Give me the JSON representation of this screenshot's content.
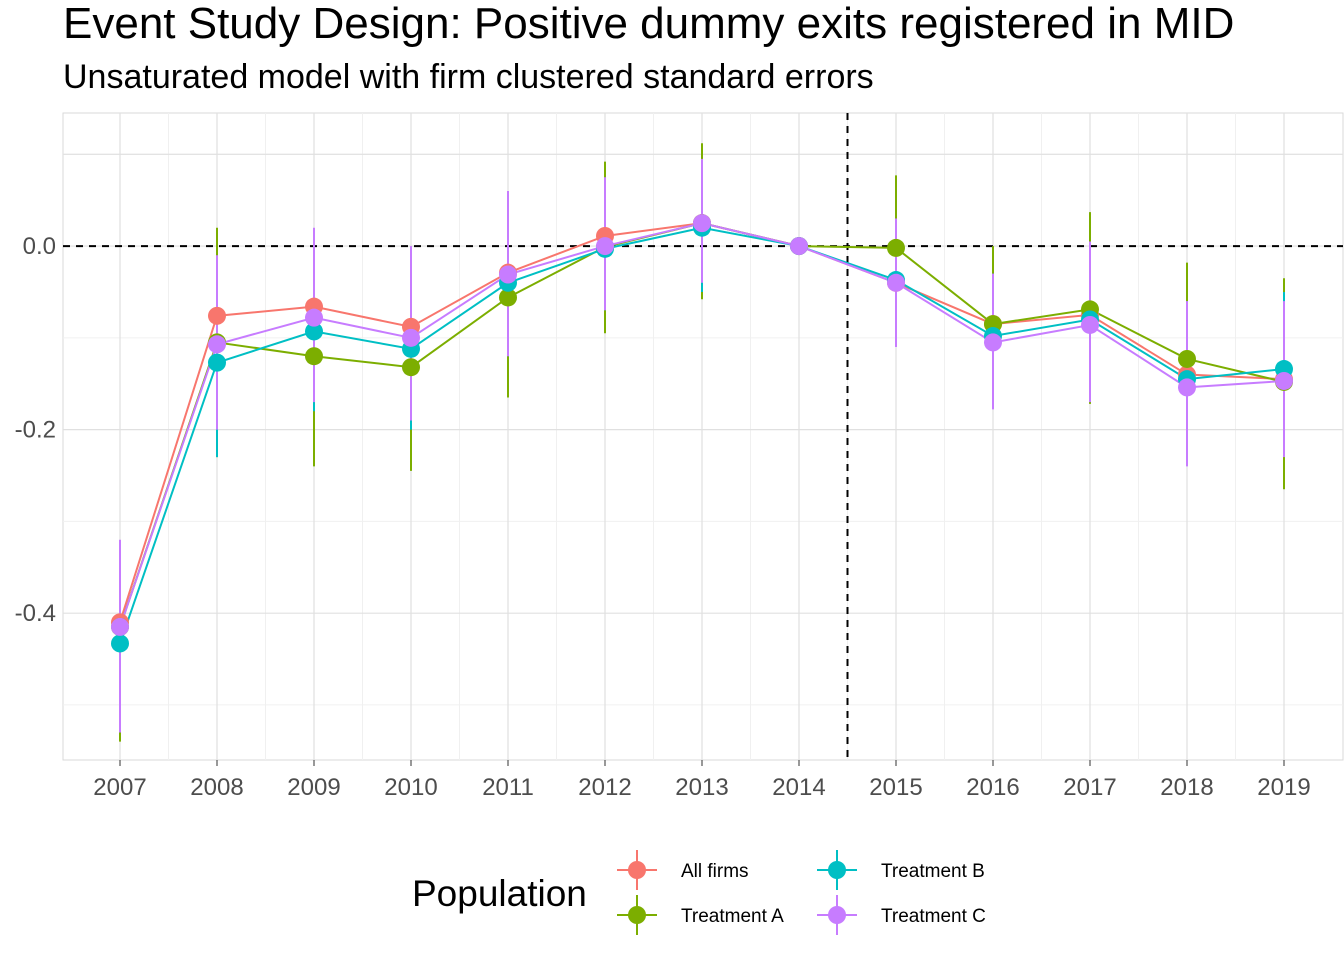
{
  "title": "Event Study Design: Positive dummy exits registered in MID",
  "subtitle": "Unsaturated model with firm clustered standard errors",
  "chart_data": {
    "type": "line",
    "title": "Event Study Design: Positive dummy exits registered in MID",
    "subtitle": "Unsaturated model with firm clustered standard errors",
    "xlabel": "",
    "ylabel": "",
    "x": [
      "2007",
      "2008",
      "2009",
      "2010",
      "2011",
      "2012",
      "2013",
      "2014",
      "2015",
      "2016",
      "2017",
      "2018",
      "2019"
    ],
    "ylim": [
      -0.56,
      0.145
    ],
    "y_ticks": [
      -0.4,
      -0.2,
      0.0
    ],
    "y_tick_labels": [
      "-0.4",
      "-0.2",
      "0.0"
    ],
    "reference_lines": {
      "hline_y": 0.0,
      "vline_between": [
        "2014",
        "2015"
      ],
      "style": "dashed"
    },
    "grid": true,
    "legend": {
      "title": "Population",
      "position": "bottom"
    },
    "series": [
      {
        "name": "All firms",
        "color": "#F8766D",
        "values": [
          -0.41,
          -0.076,
          -0.066,
          -0.088,
          -0.029,
          0.011,
          0.025,
          0.0,
          -0.04,
          -0.085,
          -0.075,
          -0.14,
          -0.145
        ],
        "ci_low": [
          -0.49,
          -0.14,
          -0.14,
          -0.17,
          -0.11,
          -0.06,
          -0.04,
          0.0,
          -0.1,
          -0.16,
          -0.16,
          -0.22,
          -0.24
        ],
        "ci_high": [
          -0.33,
          -0.01,
          0.01,
          -0.005,
          0.05,
          0.08,
          0.09,
          0.0,
          0.02,
          -0.01,
          0.01,
          -0.06,
          -0.05
        ]
      },
      {
        "name": "Treatment A",
        "color": "#7CAE00",
        "values": [
          -0.415,
          -0.105,
          -0.12,
          -0.132,
          -0.056,
          -0.001,
          0.025,
          0.0,
          -0.002,
          -0.085,
          -0.069,
          -0.123,
          -0.148
        ],
        "ci_low": [
          -0.54,
          -0.23,
          -0.24,
          -0.245,
          -0.165,
          -0.095,
          -0.058,
          0.0,
          -0.08,
          -0.17,
          -0.172,
          -0.22,
          -0.265
        ],
        "ci_high": [
          -0.325,
          0.02,
          0.0,
          -0.02,
          0.05,
          0.092,
          0.112,
          0.0,
          0.077,
          0.0,
          0.037,
          -0.018,
          -0.035
        ]
      },
      {
        "name": "Treatment B",
        "color": "#00BFC4",
        "values": [
          -0.433,
          -0.127,
          -0.093,
          -0.112,
          -0.04,
          -0.003,
          0.02,
          0.0,
          -0.037,
          -0.098,
          -0.08,
          -0.145,
          -0.134
        ],
        "ci_low": [
          -0.53,
          -0.23,
          -0.18,
          -0.2,
          -0.12,
          -0.07,
          -0.05,
          0.0,
          -0.1,
          -0.17,
          -0.16,
          -0.22,
          -0.21
        ],
        "ci_high": [
          -0.35,
          -0.02,
          0.0,
          -0.02,
          0.04,
          0.07,
          0.09,
          0.0,
          0.03,
          -0.03,
          0.0,
          -0.06,
          -0.05
        ]
      },
      {
        "name": "Treatment C",
        "color": "#C77CFF",
        "values": [
          -0.415,
          -0.107,
          -0.078,
          -0.1,
          -0.031,
          0.0,
          0.025,
          0.0,
          -0.04,
          -0.105,
          -0.086,
          -0.154,
          -0.147
        ],
        "ci_low": [
          -0.53,
          -0.2,
          -0.17,
          -0.19,
          -0.12,
          -0.07,
          -0.04,
          0.0,
          -0.11,
          -0.178,
          -0.17,
          -0.24,
          -0.23
        ],
        "ci_high": [
          -0.32,
          -0.01,
          0.02,
          0.0,
          0.06,
          0.075,
          0.095,
          0.0,
          0.03,
          -0.03,
          0.005,
          -0.06,
          -0.06
        ]
      }
    ]
  }
}
